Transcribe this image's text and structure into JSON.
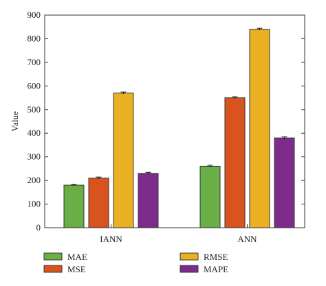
{
  "chart_data": {
    "type": "bar",
    "title": "",
    "xlabel": "",
    "ylabel": "Value",
    "ylim": [
      0,
      900
    ],
    "yticks": [
      0,
      100,
      200,
      300,
      400,
      500,
      600,
      700,
      800,
      900
    ],
    "categories": [
      "IANN",
      "ANN"
    ],
    "series": [
      {
        "name": "MAE",
        "values": [
          180,
          260
        ],
        "color": "#6aae46"
      },
      {
        "name": "MSE",
        "values": [
          210,
          550
        ],
        "color": "#d9531e"
      },
      {
        "name": "RMSE",
        "values": [
          570,
          840
        ],
        "color": "#e9b024"
      },
      {
        "name": "MAPE",
        "values": [
          230,
          380
        ],
        "color": "#7d2c8c"
      }
    ],
    "error_bars": true,
    "grid": false,
    "legend_position": "bottom"
  }
}
